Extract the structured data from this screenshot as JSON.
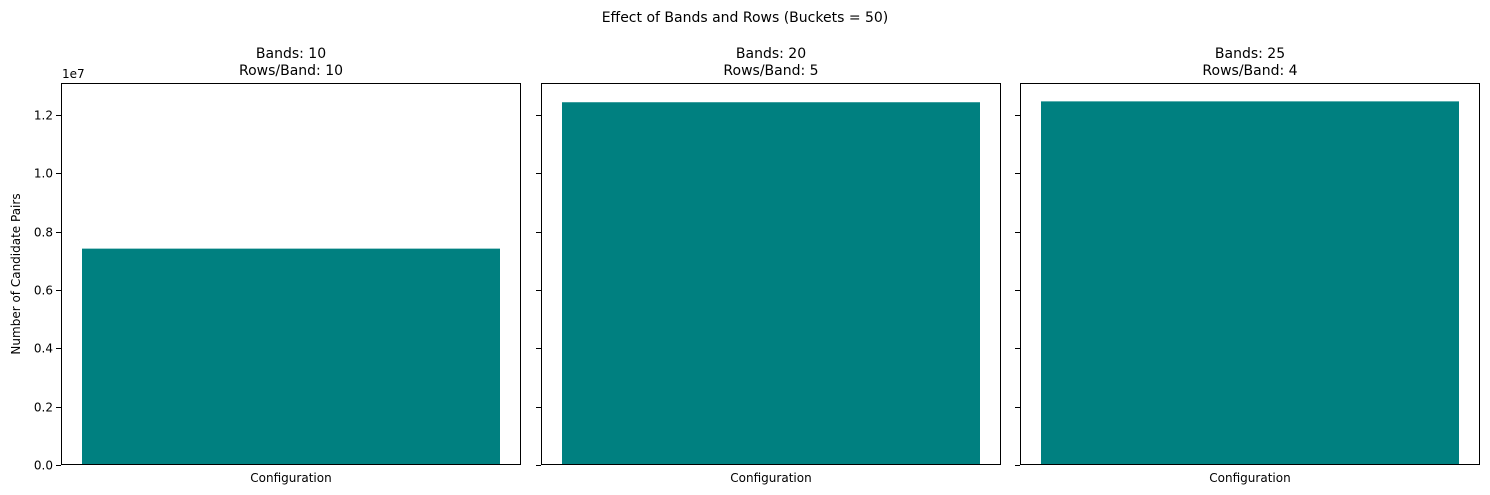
{
  "figure": {
    "suptitle": "Effect of Bands and Rows (Buckets = 50)",
    "ylabel": "Number of Candidate Pairs",
    "offset_label": "1e7",
    "bar_color": "#008080"
  },
  "chart_data": [
    {
      "type": "bar",
      "title_line1": "Bands: 10",
      "title_line2": "Rows/Band: 10",
      "categories": [
        "Configuration"
      ],
      "values": [
        7420000
      ],
      "xlabel": "Configuration",
      "ylim": [
        0,
        13100000
      ],
      "yticks": [
        0,
        2000000,
        4000000,
        6000000,
        8000000,
        10000000,
        12000000
      ],
      "ytick_labels": [
        "0.0",
        "0.2",
        "0.4",
        "0.6",
        "0.8",
        "1.0",
        "1.2"
      ]
    },
    {
      "type": "bar",
      "title_line1": "Bands: 20",
      "title_line2": "Rows/Band: 5",
      "categories": [
        "Configuration"
      ],
      "values": [
        12440000
      ],
      "xlabel": "Configuration",
      "ylim": [
        0,
        13100000
      ],
      "yticks": [
        0,
        2000000,
        4000000,
        6000000,
        8000000,
        10000000,
        12000000
      ]
    },
    {
      "type": "bar",
      "title_line1": "Bands: 25",
      "title_line2": "Rows/Band: 4",
      "categories": [
        "Configuration"
      ],
      "values": [
        12470000
      ],
      "xlabel": "Configuration",
      "ylim": [
        0,
        13100000
      ],
      "yticks": [
        0,
        2000000,
        4000000,
        6000000,
        8000000,
        10000000,
        12000000
      ]
    }
  ]
}
